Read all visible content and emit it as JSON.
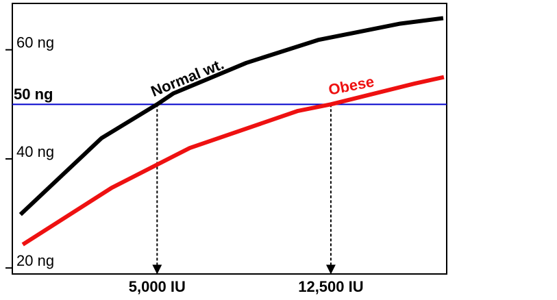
{
  "chart_data": {
    "type": "line",
    "xlim": [
      -1250,
      17500
    ],
    "ylim": [
      18.9,
      68.5
    ],
    "xticks": [
      {
        "value": 5000,
        "label": "5,000 IU"
      },
      {
        "value": 12500,
        "label": "12,500 IU"
      }
    ],
    "yticks": [
      {
        "value": 20,
        "label": "20 ng"
      },
      {
        "value": 40,
        "label": "40 ng"
      },
      {
        "value": 60,
        "label": "60 ng"
      }
    ],
    "reference_line": {
      "value": 50,
      "label": "50 ng",
      "color": "#0000cc"
    },
    "series": [
      {
        "name": "Normal wt.",
        "color": "#000000",
        "x": [
          -900,
          2600,
          5000,
          5700,
          8850,
          11950,
          15500,
          17350
        ],
        "values": [
          29.8,
          43.8,
          50,
          52,
          57.6,
          61.8,
          64.8,
          65.8
        ]
      },
      {
        "name": "Obese",
        "color": "#ee1111",
        "x": [
          -800,
          3040,
          6410,
          11080,
          12500,
          16110,
          17380
        ],
        "values": [
          24.3,
          34.7,
          42,
          48.8,
          50,
          53.8,
          55
        ]
      }
    ]
  }
}
